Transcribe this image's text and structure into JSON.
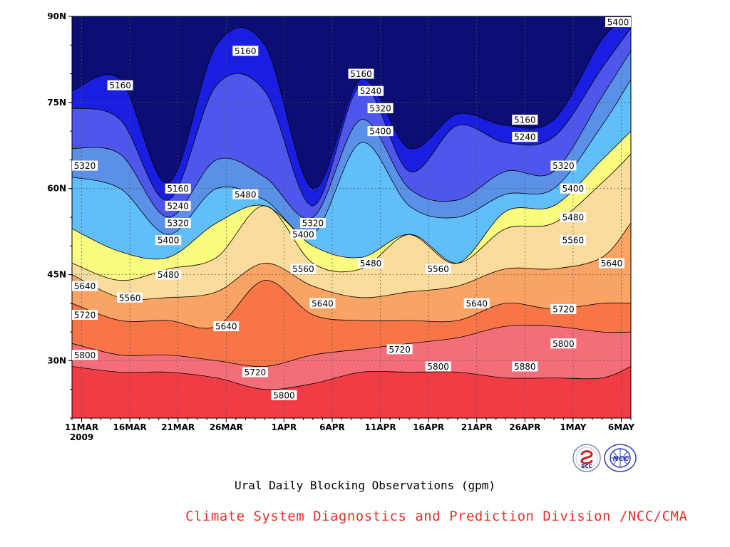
{
  "chart_data": {
    "type": "heatmap",
    "subtype": "filled-contour",
    "title": "Ural Daily Blocking Observations (gpm)",
    "credit": "Climate System Diagnostics and Prediction Division /NCC/CMA",
    "x_labels": [
      "11MAR",
      "16MAR",
      "21MAR",
      "26MAR",
      "1APR",
      "6APR",
      "11APR",
      "16APR",
      "21APR",
      "26APR",
      "1MAY",
      "6MAY"
    ],
    "x_year_label": "2009",
    "x_range": [
      "2009-03-10",
      "2009-05-07"
    ],
    "y_labels": [
      "90N",
      "75N",
      "60N",
      "45N",
      "30N"
    ],
    "y_ticks": [
      90,
      75,
      60,
      45,
      30
    ],
    "y_range": [
      20,
      90
    ],
    "grid": "dotted",
    "contour_levels": [
      5160,
      5240,
      5320,
      5400,
      5480,
      5560,
      5640,
      5720,
      5800,
      5880
    ],
    "fill_colors": [
      "#0c0e73",
      "#1a1ee0",
      "#4f56ec",
      "#5a90e6",
      "#60befa",
      "#fbfb80",
      "#fbdc9c",
      "#f9a365",
      "#f77547",
      "#f46e7a",
      "#f03c45"
    ],
    "dates": [
      "2009-03-10",
      "2009-03-15",
      "2009-03-20",
      "2009-03-25",
      "2009-03-30",
      "2009-04-04",
      "2009-04-09",
      "2009-04-14",
      "2009-04-19",
      "2009-04-24",
      "2009-04-29",
      "2009-05-04",
      "2009-05-07"
    ],
    "contour_latitudes": {
      "5160": [
        77,
        79,
        61,
        85,
        85,
        60,
        79,
        67,
        73,
        71,
        72,
        86,
        90
      ],
      "5240": [
        74,
        72,
        58,
        78,
        77,
        57,
        78,
        63,
        71,
        68,
        69,
        81,
        88
      ],
      "5320": [
        67,
        66,
        55,
        65,
        62,
        55,
        72,
        60,
        58,
        63,
        63,
        76,
        84
      ],
      "5400": [
        62,
        60,
        52,
        60,
        58,
        52,
        68,
        57,
        55,
        59,
        60,
        71,
        79
      ],
      "5480": [
        53,
        49,
        48,
        54,
        57,
        50,
        48,
        52,
        47,
        56,
        57,
        65,
        70
      ],
      "5560": [
        47,
        44,
        46,
        48,
        57,
        47,
        46,
        52,
        47,
        53,
        54,
        61,
        66
      ],
      "5640": [
        45,
        41,
        41,
        42,
        47,
        43,
        41,
        42,
        43,
        46,
        46,
        48,
        54
      ],
      "5720": [
        40,
        37,
        37,
        36,
        44,
        38,
        37,
        37,
        37,
        40,
        39,
        40,
        40
      ],
      "5800": [
        33,
        31,
        31,
        30,
        29,
        31,
        32,
        33,
        34,
        36,
        36,
        35,
        35
      ],
      "5880": [
        29,
        28,
        28,
        27,
        25,
        26,
        28,
        28,
        28,
        27,
        27,
        27,
        29
      ]
    },
    "contour_labels": [
      {
        "text": "5160",
        "date": "2009-03-15",
        "lat": 78
      },
      {
        "text": "5160",
        "date": "2009-03-28",
        "lat": 84
      },
      {
        "text": "5160",
        "date": "2009-04-09",
        "lat": 80
      },
      {
        "text": "5160",
        "date": "2009-03-21",
        "lat": 60
      },
      {
        "text": "5160",
        "date": "2009-04-26",
        "lat": 72
      },
      {
        "text": "5240",
        "date": "2009-04-10",
        "lat": 77
      },
      {
        "text": "5240",
        "date": "2009-03-21",
        "lat": 57
      },
      {
        "text": "5240",
        "date": "2009-04-26",
        "lat": 69
      },
      {
        "text": "5320",
        "date": "2009-04-11",
        "lat": 74
      },
      {
        "text": "5320",
        "date": "2009-03-10",
        "lat": 64
      },
      {
        "text": "5320",
        "date": "2009-03-21",
        "lat": 54
      },
      {
        "text": "5320",
        "date": "2009-04-04",
        "lat": 54
      },
      {
        "text": "5320",
        "date": "2009-04-30",
        "lat": 64
      },
      {
        "text": "5400",
        "date": "2009-04-11",
        "lat": 70
      },
      {
        "text": "5400",
        "date": "2009-03-20",
        "lat": 51
      },
      {
        "text": "5400",
        "date": "2009-04-03",
        "lat": 52
      },
      {
        "text": "5400",
        "date": "2009-05-01",
        "lat": 60
      },
      {
        "text": "5480",
        "date": "2009-03-28",
        "lat": 59
      },
      {
        "text": "5480",
        "date": "2009-03-20",
        "lat": 45
      },
      {
        "text": "5480",
        "date": "2009-04-10",
        "lat": 47
      },
      {
        "text": "5480",
        "date": "2009-05-01",
        "lat": 55
      },
      {
        "text": "5560",
        "date": "2009-03-16",
        "lat": 41
      },
      {
        "text": "5560",
        "date": "2009-04-03",
        "lat": 46
      },
      {
        "text": "5560",
        "date": "2009-04-17",
        "lat": 46
      },
      {
        "text": "5560",
        "date": "2009-05-01",
        "lat": 51
      },
      {
        "text": "5640",
        "date": "2009-03-10",
        "lat": 43
      },
      {
        "text": "5640",
        "date": "2009-03-26",
        "lat": 36
      },
      {
        "text": "5640",
        "date": "2009-04-05",
        "lat": 40
      },
      {
        "text": "5640",
        "date": "2009-04-21",
        "lat": 40
      },
      {
        "text": "5640",
        "date": "2009-05-05",
        "lat": 47
      },
      {
        "text": "5720",
        "date": "2009-03-10",
        "lat": 38
      },
      {
        "text": "5720",
        "date": "2009-03-29",
        "lat": 28
      },
      {
        "text": "5720",
        "date": "2009-04-13",
        "lat": 32
      },
      {
        "text": "5720",
        "date": "2009-04-30",
        "lat": 39
      },
      {
        "text": "5800",
        "date": "2009-03-10",
        "lat": 31
      },
      {
        "text": "5800",
        "date": "2009-04-01",
        "lat": 24
      },
      {
        "text": "5800",
        "date": "2009-04-17",
        "lat": 29
      },
      {
        "text": "5800",
        "date": "2009-04-30",
        "lat": 33
      },
      {
        "text": "5880",
        "date": "2009-04-26",
        "lat": 29
      },
      {
        "text": "5400",
        "date": "2009-05-06",
        "lat": 89
      }
    ]
  },
  "logos": [
    {
      "text": "BCC",
      "icon": "bcc-logo"
    },
    {
      "text": "NCC",
      "icon": "ncc-logo"
    }
  ],
  "colors": {
    "credit": "#e8302a"
  }
}
